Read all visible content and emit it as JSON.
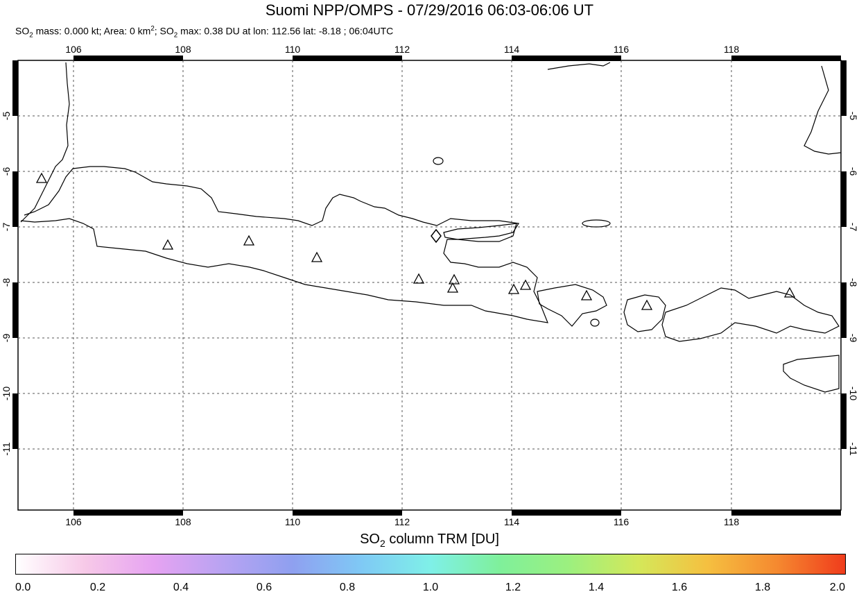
{
  "header": {
    "title": "Suomi NPP/OMPS - 07/29/2016 06:03-06:06 UT",
    "subtitle_parts": {
      "a": "SO",
      "a_sub": "2",
      "b": " mass: 0.000 kt; Area: 0 km",
      "b_sup": "2",
      "c": "; SO",
      "c_sub": "2",
      "d": " max: 0.38 DU at lon: 112.56 lat: -8.18 ; 06:04UTC"
    }
  },
  "map": {
    "lon_range": [
      105,
      120
    ],
    "lat_range": [
      -12,
      -4
    ],
    "lon_ticks": [
      "106",
      "108",
      "110",
      "112",
      "114",
      "116",
      "118"
    ],
    "lat_ticks": [
      "-5",
      "-6",
      "-7",
      "-8",
      "-9",
      "-10",
      "-11"
    ],
    "grid": "dashed",
    "volcano_marker": "triangle",
    "max_marker": "diamond"
  },
  "colorbar": {
    "title_pre": "SO",
    "title_sub": "2",
    "title_post": " column TRM [DU]",
    "labels": [
      "0.0",
      "0.2",
      "0.4",
      "0.6",
      "0.8",
      "1.0",
      "1.2",
      "1.4",
      "1.6",
      "1.8",
      "2.0"
    ],
    "colors": [
      "#ffffff",
      "#f7c9e8",
      "#e6a3f2",
      "#b8a3f2",
      "#8fa0f0",
      "#7fc9f5",
      "#7ff0e8",
      "#7ff09b",
      "#9cf07f",
      "#d4e85a",
      "#f5c040",
      "#f58a30",
      "#f03c1c"
    ]
  }
}
